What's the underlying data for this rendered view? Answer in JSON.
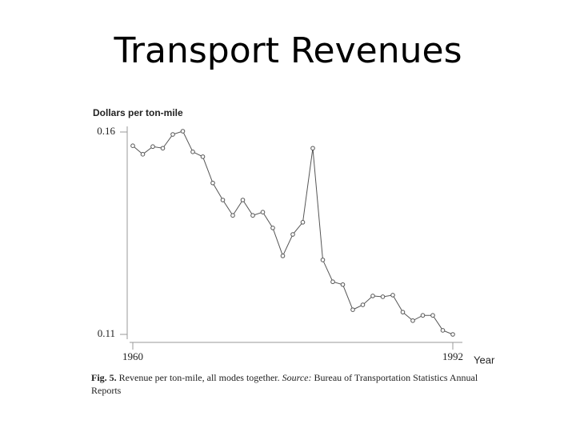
{
  "title": "Transport Revenues",
  "chart_data": {
    "type": "line",
    "y_label": "Dollars per ton-mile",
    "x_label": "Year",
    "x": [
      1960,
      1961,
      1962,
      1963,
      1964,
      1965,
      1966,
      1967,
      1968,
      1969,
      1970,
      1971,
      1972,
      1973,
      1974,
      1975,
      1976,
      1977,
      1978,
      1979,
      1980,
      1981,
      1982,
      1983,
      1984,
      1985,
      1986,
      1987,
      1988,
      1989,
      1990,
      1991,
      1992
    ],
    "values": [
      0.1566,
      0.1545,
      0.1564,
      0.156,
      0.1594,
      0.1602,
      0.1551,
      0.1539,
      0.1474,
      0.1432,
      0.1394,
      0.1432,
      0.1394,
      0.1402,
      0.1363,
      0.1294,
      0.1347,
      0.1377,
      0.156,
      0.1284,
      0.123,
      0.1223,
      0.1161,
      0.1173,
      0.1195,
      0.1193,
      0.1197,
      0.1155,
      0.1134,
      0.1147,
      0.1147,
      0.111,
      0.11
    ],
    "color": "#555555",
    "xlim": [
      1960,
      1992
    ],
    "xticks": [
      1960,
      1992
    ],
    "ylim": [
      0.11,
      0.16
    ],
    "yticks": [
      0.11,
      0.16
    ],
    "caption": {
      "label": "Fig. 5.",
      "text": "Revenue per ton-mile, all modes together.",
      "source_label": "Source:",
      "source": "Bureau of Transportation Statistics Annual Reports"
    }
  }
}
